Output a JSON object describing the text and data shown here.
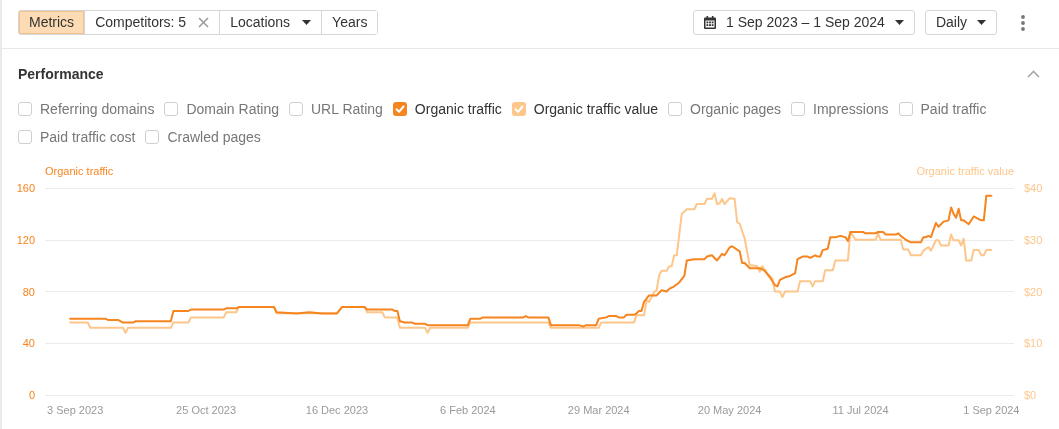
{
  "chart_data": {
    "type": "line",
    "title": "Performance",
    "ylabel": "Organic traffic",
    "y2label": "Organic traffic value",
    "annotations": [
      "Metrics",
      "Competitors: 5",
      "Locations",
      "Years",
      "1 Sep 2023 – 1 Sep 2024",
      "Daily",
      "Referring domains",
      "Domain Rating",
      "URL Rating",
      "Organic pages",
      "Impressions",
      "Paid traffic",
      "Paid traffic cost",
      "Crawled pages"
    ],
    "xlim": [
      "2023-08-22",
      "2024-09-10"
    ],
    "xticks": [
      {
        "value": "2023-09-03",
        "label": "3 Sep 2023"
      },
      {
        "value": "2023-10-25",
        "label": "25 Oct 2023"
      },
      {
        "value": "2023-12-16",
        "label": "16 Dec 2023"
      },
      {
        "value": "2024-02-06",
        "label": "6 Feb 2024"
      },
      {
        "value": "2024-03-29",
        "label": "29 Mar 2024"
      },
      {
        "value": "2024-05-20",
        "label": "20 May 2024"
      },
      {
        "value": "2024-07-11",
        "label": "11 Jul 2024"
      },
      {
        "value": "2024-09-01",
        "label": "1 Sep 2024"
      }
    ],
    "ylim": [
      0,
      160
    ],
    "yticks": [
      0,
      40,
      80,
      120,
      160
    ],
    "y2lim": [
      0,
      40
    ],
    "y2ticks": [
      {
        "value": 0,
        "label": "$0"
      },
      {
        "value": 10,
        "label": "$10"
      },
      {
        "value": 20,
        "label": "$20"
      },
      {
        "value": 30,
        "label": "$30"
      },
      {
        "value": 40,
        "label": "$40"
      }
    ],
    "grid": "y",
    "legend": "top left",
    "series": [
      {
        "name": "Organic traffic",
        "color": "#f6841f",
        "x": [
          "2023-09-01",
          "2023-09-15",
          "2023-09-16",
          "2023-09-20",
          "2023-09-22",
          "2023-09-26",
          "2023-09-27",
          "2023-10-11",
          "2023-10-12",
          "2023-10-18",
          "2023-10-19",
          "2023-11-01",
          "2023-11-02",
          "2023-11-06",
          "2023-11-07",
          "2023-11-21",
          "2023-11-22",
          "2023-11-30",
          "2023-12-05",
          "2023-12-10",
          "2023-12-16",
          "2023-12-18",
          "2023-12-27",
          "2023-12-28",
          "2024-01-07",
          "2024-01-08",
          "2024-01-09",
          "2024-01-10",
          "2024-01-12",
          "2024-01-15",
          "2024-01-16",
          "2024-01-20",
          "2024-01-21",
          "2024-02-06",
          "2024-02-07",
          "2024-02-11",
          "2024-02-12",
          "2024-02-28",
          "2024-02-29",
          "2024-03-01",
          "2024-03-09",
          "2024-03-10",
          "2024-03-21",
          "2024-03-23",
          "2024-03-24",
          "2024-03-28",
          "2024-03-29",
          "2024-04-01",
          "2024-04-02",
          "2024-04-05",
          "2024-04-06",
          "2024-04-08",
          "2024-04-09",
          "2024-04-12",
          "2024-04-13",
          "2024-04-14",
          "2024-04-15",
          "2024-04-16",
          "2024-04-18",
          "2024-04-21",
          "2024-04-23",
          "2024-04-25",
          "2024-04-26",
          "2024-04-28",
          "2024-04-30",
          "2024-05-02",
          "2024-05-03",
          "2024-05-06",
          "2024-05-10",
          "2024-05-11",
          "2024-05-13",
          "2024-05-15",
          "2024-05-17",
          "2024-05-18",
          "2024-05-20",
          "2024-05-21",
          "2024-05-24",
          "2024-05-25",
          "2024-05-26",
          "2024-05-28",
          "2024-05-30",
          "2024-06-01",
          "2024-06-03",
          "2024-06-05",
          "2024-06-07",
          "2024-06-08",
          "2024-06-09",
          "2024-06-11",
          "2024-06-13",
          "2024-06-15",
          "2024-06-16",
          "2024-06-18",
          "2024-06-20",
          "2024-06-21",
          "2024-06-23",
          "2024-06-24",
          "2024-06-25",
          "2024-06-26",
          "2024-06-28",
          "2024-06-29",
          "2024-07-01",
          "2024-07-03",
          "2024-07-05",
          "2024-07-06",
          "2024-07-07",
          "2024-07-12",
          "2024-07-13",
          "2024-07-17",
          "2024-07-18",
          "2024-07-20",
          "2024-07-21",
          "2024-07-25",
          "2024-07-26",
          "2024-07-27",
          "2024-07-29",
          "2024-07-31",
          "2024-08-04",
          "2024-08-05",
          "2024-08-06",
          "2024-08-07",
          "2024-08-08",
          "2024-08-10",
          "2024-08-11",
          "2024-08-13",
          "2024-08-15",
          "2024-08-16",
          "2024-08-17",
          "2024-08-18",
          "2024-08-19",
          "2024-08-20",
          "2024-08-21",
          "2024-08-23",
          "2024-08-25",
          "2024-08-27",
          "2024-08-28",
          "2024-08-29",
          "2024-08-30",
          "2024-09-01"
        ],
        "values": [
          59,
          59,
          58,
          58,
          56,
          56,
          57,
          57,
          65,
          65,
          66,
          66,
          67,
          67,
          68,
          68,
          64,
          63,
          64,
          63,
          63,
          68,
          68,
          66,
          66,
          65,
          65,
          57,
          56,
          56,
          55,
          55,
          54,
          54,
          59,
          59,
          60,
          60,
          61,
          60,
          60,
          54,
          54,
          53,
          54,
          54,
          59,
          60,
          61,
          61,
          60,
          60,
          62,
          62,
          63,
          65,
          65,
          72,
          77,
          77,
          81,
          80,
          82,
          84,
          87,
          92,
          104,
          105,
          105,
          107,
          108,
          104,
          109,
          108,
          114,
          115,
          111,
          102,
          102,
          98,
          98,
          98,
          96,
          91,
          85,
          84,
          89,
          91,
          92,
          94,
          105,
          107,
          107,
          106,
          108,
          107,
          107,
          112,
          113,
          122,
          122,
          123,
          122,
          119,
          126,
          126,
          125,
          125,
          126,
          126,
          124,
          124,
          125,
          123,
          120,
          118,
          118,
          122,
          122,
          123,
          122,
          133,
          130,
          134,
          135,
          145,
          140,
          137,
          144,
          135,
          135,
          132,
          138,
          136,
          135,
          135,
          154,
          154
        ]
      },
      {
        "name": "Organic traffic value",
        "color": "#fdc68a",
        "axis": "y2",
        "x": [
          "2023-09-01",
          "2023-09-08",
          "2023-09-09",
          "2023-09-22",
          "2023-09-23",
          "2023-09-24",
          "2023-10-11",
          "2023-10-12",
          "2023-10-18",
          "2023-10-19",
          "2023-11-01",
          "2023-11-02",
          "2023-11-06",
          "2023-11-07",
          "2023-11-21",
          "2023-11-22",
          "2023-12-16",
          "2023-12-18",
          "2023-12-27",
          "2023-12-28",
          "2024-01-03",
          "2024-01-04",
          "2024-01-09",
          "2024-01-10",
          "2024-01-20",
          "2024-01-21",
          "2024-01-22",
          "2024-02-06",
          "2024-02-07",
          "2024-03-09",
          "2024-03-10",
          "2024-03-29",
          "2024-03-30",
          "2024-04-12",
          "2024-04-13",
          "2024-04-16",
          "2024-04-17",
          "2024-04-18",
          "2024-04-19",
          "2024-04-20",
          "2024-04-21",
          "2024-04-22",
          "2024-04-23",
          "2024-04-25",
          "2024-04-26",
          "2024-04-27",
          "2024-04-28",
          "2024-04-29",
          "2024-05-01",
          "2024-05-03",
          "2024-05-06",
          "2024-05-07",
          "2024-05-10",
          "2024-05-11",
          "2024-05-13",
          "2024-05-14",
          "2024-05-15",
          "2024-05-16",
          "2024-05-17",
          "2024-05-18",
          "2024-05-20",
          "2024-05-22",
          "2024-05-23",
          "2024-05-24",
          "2024-05-26",
          "2024-05-28",
          "2024-05-31",
          "2024-06-01",
          "2024-06-02",
          "2024-06-04",
          "2024-06-06",
          "2024-06-07",
          "2024-06-09",
          "2024-06-10",
          "2024-06-11",
          "2024-06-16",
          "2024-06-17",
          "2024-06-21",
          "2024-06-22",
          "2024-06-23",
          "2024-06-26",
          "2024-06-27",
          "2024-06-30",
          "2024-07-01",
          "2024-07-06",
          "2024-07-07",
          "2024-07-09",
          "2024-07-17",
          "2024-07-18",
          "2024-07-19",
          "2024-07-27",
          "2024-07-28",
          "2024-07-30",
          "2024-07-31",
          "2024-08-04",
          "2024-08-05",
          "2024-08-07",
          "2024-08-08",
          "2024-08-09",
          "2024-08-10",
          "2024-08-11",
          "2024-08-12",
          "2024-08-15",
          "2024-08-16",
          "2024-08-17",
          "2024-08-19",
          "2024-08-20",
          "2024-08-21",
          "2024-08-22",
          "2024-08-24",
          "2024-08-25",
          "2024-08-27",
          "2024-08-28",
          "2024-08-29",
          "2024-08-30",
          "2024-09-01"
        ],
        "values": [
          14,
          14,
          13,
          13,
          12,
          13,
          13,
          14,
          14,
          15,
          15,
          16,
          16,
          17,
          17,
          15.8,
          15.8,
          17,
          17,
          16,
          16,
          15,
          15,
          13,
          13,
          12,
          13,
          13,
          14,
          14,
          13,
          13,
          14,
          14,
          15.4,
          15.4,
          18.3,
          18,
          18.9,
          19.9,
          20.2,
          23.1,
          24,
          24,
          24.9,
          24.9,
          27,
          27,
          35,
          35.9,
          35.9,
          36.9,
          36.9,
          37.9,
          37.9,
          39,
          36.9,
          37,
          37.9,
          36.9,
          38,
          37.9,
          33.4,
          33.1,
          30.2,
          25.1,
          24.9,
          23.8,
          24.9,
          23.5,
          22.5,
          20,
          20,
          18.9,
          20,
          20,
          22,
          22,
          21,
          22,
          22,
          24.1,
          24.1,
          26,
          26,
          31.5,
          30,
          30,
          31.2,
          30,
          30,
          28.1,
          28.1,
          27,
          27,
          27.9,
          28.6,
          27.9,
          28.9,
          29.9,
          29.9,
          28.9,
          28.9,
          31,
          29.9,
          29.9,
          28.9,
          30.2,
          26,
          26,
          28,
          28,
          27,
          27,
          28,
          28
        ]
      }
    ]
  }
}
